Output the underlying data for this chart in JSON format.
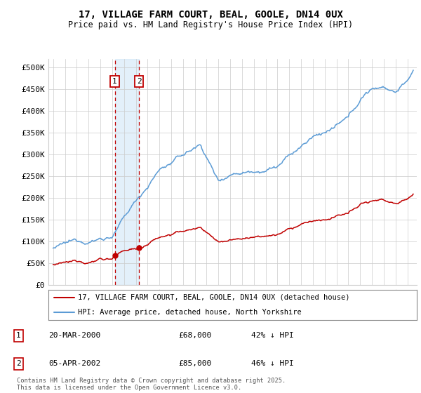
{
  "title": "17, VILLAGE FARM COURT, BEAL, GOOLE, DN14 0UX",
  "subtitle": "Price paid vs. HM Land Registry's House Price Index (HPI)",
  "ylim": [
    0,
    520000
  ],
  "yticks": [
    0,
    50000,
    100000,
    150000,
    200000,
    250000,
    300000,
    350000,
    400000,
    450000,
    500000
  ],
  "ytick_labels": [
    "£0",
    "£50K",
    "£100K",
    "£150K",
    "£200K",
    "£250K",
    "£300K",
    "£350K",
    "£400K",
    "£450K",
    "£500K"
  ],
  "hpi_color": "#5b9bd5",
  "price_color": "#c00000",
  "sale1_date": 2000.22,
  "sale1_price": 68000,
  "sale2_date": 2002.27,
  "sale2_price": 85000,
  "sale1_label": "1",
  "sale2_label": "2",
  "legend_line1": "17, VILLAGE FARM COURT, BEAL, GOOLE, DN14 0UX (detached house)",
  "legend_line2": "HPI: Average price, detached house, North Yorkshire",
  "table_row1": [
    "1",
    "20-MAR-2000",
    "£68,000",
    "42% ↓ HPI"
  ],
  "table_row2": [
    "2",
    "05-APR-2002",
    "£85,000",
    "46% ↓ HPI"
  ],
  "footnote": "Contains HM Land Registry data © Crown copyright and database right 2025.\nThis data is licensed under the Open Government Licence v3.0.",
  "background_color": "#ffffff",
  "grid_color": "#cccccc",
  "title_fontsize": 10,
  "subtitle_fontsize": 8.5,
  "axis_fontsize": 8,
  "xlim_left": 1994.6,
  "xlim_right": 2025.8
}
